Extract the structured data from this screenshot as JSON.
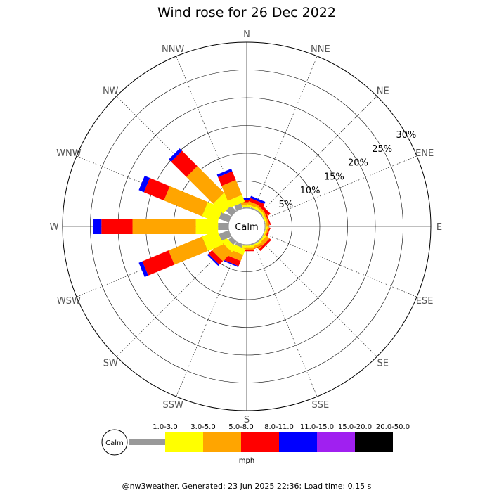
{
  "chart_data": {
    "type": "wind-rose",
    "title": "Wind rose for 26 Dec 2022",
    "calm_label": "Calm",
    "unit": "mph",
    "directions": [
      "N",
      "NNE",
      "NE",
      "ENE",
      "E",
      "ESE",
      "SE",
      "SSE",
      "S",
      "SSW",
      "SW",
      "WSW",
      "W",
      "WNW",
      "NW",
      "NNW"
    ],
    "ring_labels": [
      "5%",
      "10%",
      "15%",
      "20%",
      "25%",
      "30%"
    ],
    "ring_values": [
      5,
      10,
      15,
      20,
      25,
      30
    ],
    "max_percent": 30,
    "calm_percent": 1.8,
    "speed_bins": [
      {
        "label": "1.0-3.0",
        "color": "#999999"
      },
      {
        "label": "3.0-5.0",
        "color": "#ffff00"
      },
      {
        "label": "5.0-8.0",
        "color": "#ffa500"
      },
      {
        "label": "8.0-11.0",
        "color": "#ff0000"
      },
      {
        "label": "11.0-15.0",
        "color": "#0000ff"
      },
      {
        "label": "15.0-20.0",
        "color": "#a020f0"
      },
      {
        "label": "20.0-50.0",
        "color": "#000000"
      }
    ],
    "cumulative_percent": {
      "N": [
        0.3,
        0.6,
        1.2,
        1.6,
        1.9,
        1.9,
        1.9
      ],
      "NNE": [
        0.3,
        0.6,
        1.2,
        1.8,
        2.2,
        2.2,
        2.2
      ],
      "NE": [
        0.3,
        0.6,
        1.0,
        1.5,
        1.5,
        1.5,
        1.5
      ],
      "ENE": [
        0.2,
        0.5,
        0.8,
        1.0,
        1.0,
        1.0,
        1.0
      ],
      "E": [
        0.2,
        0.4,
        0.7,
        0.8,
        0.8,
        0.8,
        0.8
      ],
      "ESE": [
        0.2,
        0.4,
        0.7,
        0.9,
        0.9,
        0.9,
        0.9
      ],
      "SE": [
        0.3,
        0.6,
        1.3,
        1.7,
        1.7,
        1.7,
        1.7
      ],
      "SSE": [
        0.3,
        0.6,
        1.0,
        1.1,
        1.1,
        1.1,
        1.1
      ],
      "S": [
        0.3,
        0.6,
        1.0,
        1.3,
        1.3,
        1.3,
        1.3
      ],
      "SSW": [
        0.7,
        1.8,
        3.0,
        4.0,
        4.2,
        4.2,
        4.2
      ],
      "SW": [
        0.9,
        2.0,
        4.3,
        5.2,
        5.5,
        5.5,
        5.5
      ],
      "WSW": [
        2.0,
        5.0,
        11.5,
        16.6,
        17.3,
        17.3,
        17.3
      ],
      "W": [
        2.0,
        6.0,
        17.4,
        23.0,
        24.5,
        24.5,
        24.5
      ],
      "WNW": [
        2.0,
        5.0,
        12.4,
        16.3,
        17.3,
        17.3,
        17.3
      ],
      "NW": [
        1.5,
        4.0,
        10.8,
        14.7,
        15.3,
        15.3,
        15.3
      ],
      "NNW": [
        1.1,
        2.4,
        5.3,
        7.0,
        7.5,
        7.5,
        7.5
      ]
    }
  },
  "footer": {
    "text": "@nw3weather.  Generated: 23 Jun 2025 22:36; Load time: 0.15 s"
  }
}
